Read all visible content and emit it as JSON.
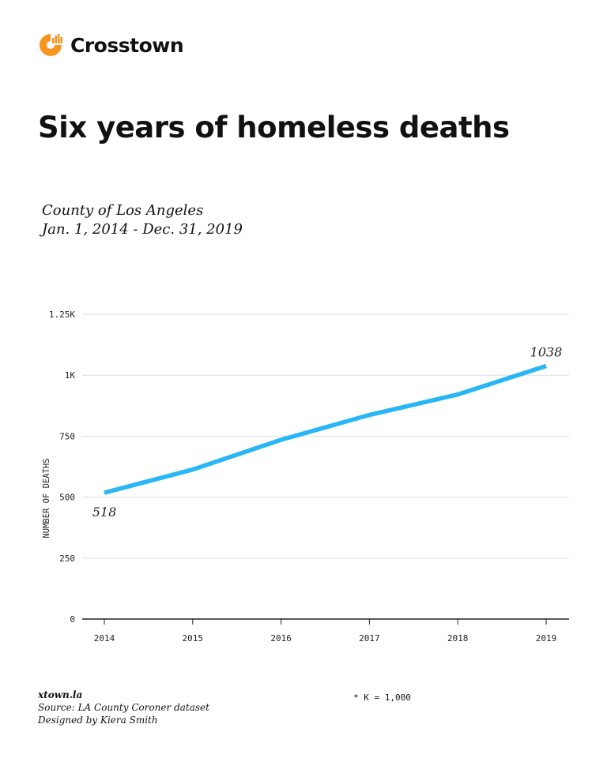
{
  "brand": {
    "name": "Crosstown",
    "color": "#f7941d"
  },
  "title": "Six years of homeless deaths",
  "subtitle": [
    "County of Los Angeles",
    "Jan. 1, 2014 - Dec. 31, 2019"
  ],
  "chart_data": {
    "type": "line",
    "x": [
      "2014",
      "2015",
      "2016",
      "2017",
      "2018",
      "2019"
    ],
    "series": [
      {
        "values": [
          518,
          613,
          735,
          837,
          921,
          1038
        ],
        "color": "#29b6f6"
      }
    ],
    "ylabel": "NUMBER OF DEATHS",
    "ylim": [
      0,
      1250
    ],
    "yticks": [
      {
        "v": 0,
        "label": "0"
      },
      {
        "v": 250,
        "label": "250"
      },
      {
        "v": 500,
        "label": "500"
      },
      {
        "v": 750,
        "label": "750"
      },
      {
        "v": 1000,
        "label": "1K"
      },
      {
        "v": 1250,
        "label": "1.25K"
      }
    ],
    "data_labels": [
      {
        "index": 0,
        "label": "518"
      },
      {
        "index": 5,
        "label": "1038"
      }
    ],
    "grid": true
  },
  "footer": {
    "site": "xtown.la",
    "source": "Source: LA County Coroner dataset",
    "credit": "Designed by Kiera Smith",
    "note": "* K = 1,000"
  }
}
